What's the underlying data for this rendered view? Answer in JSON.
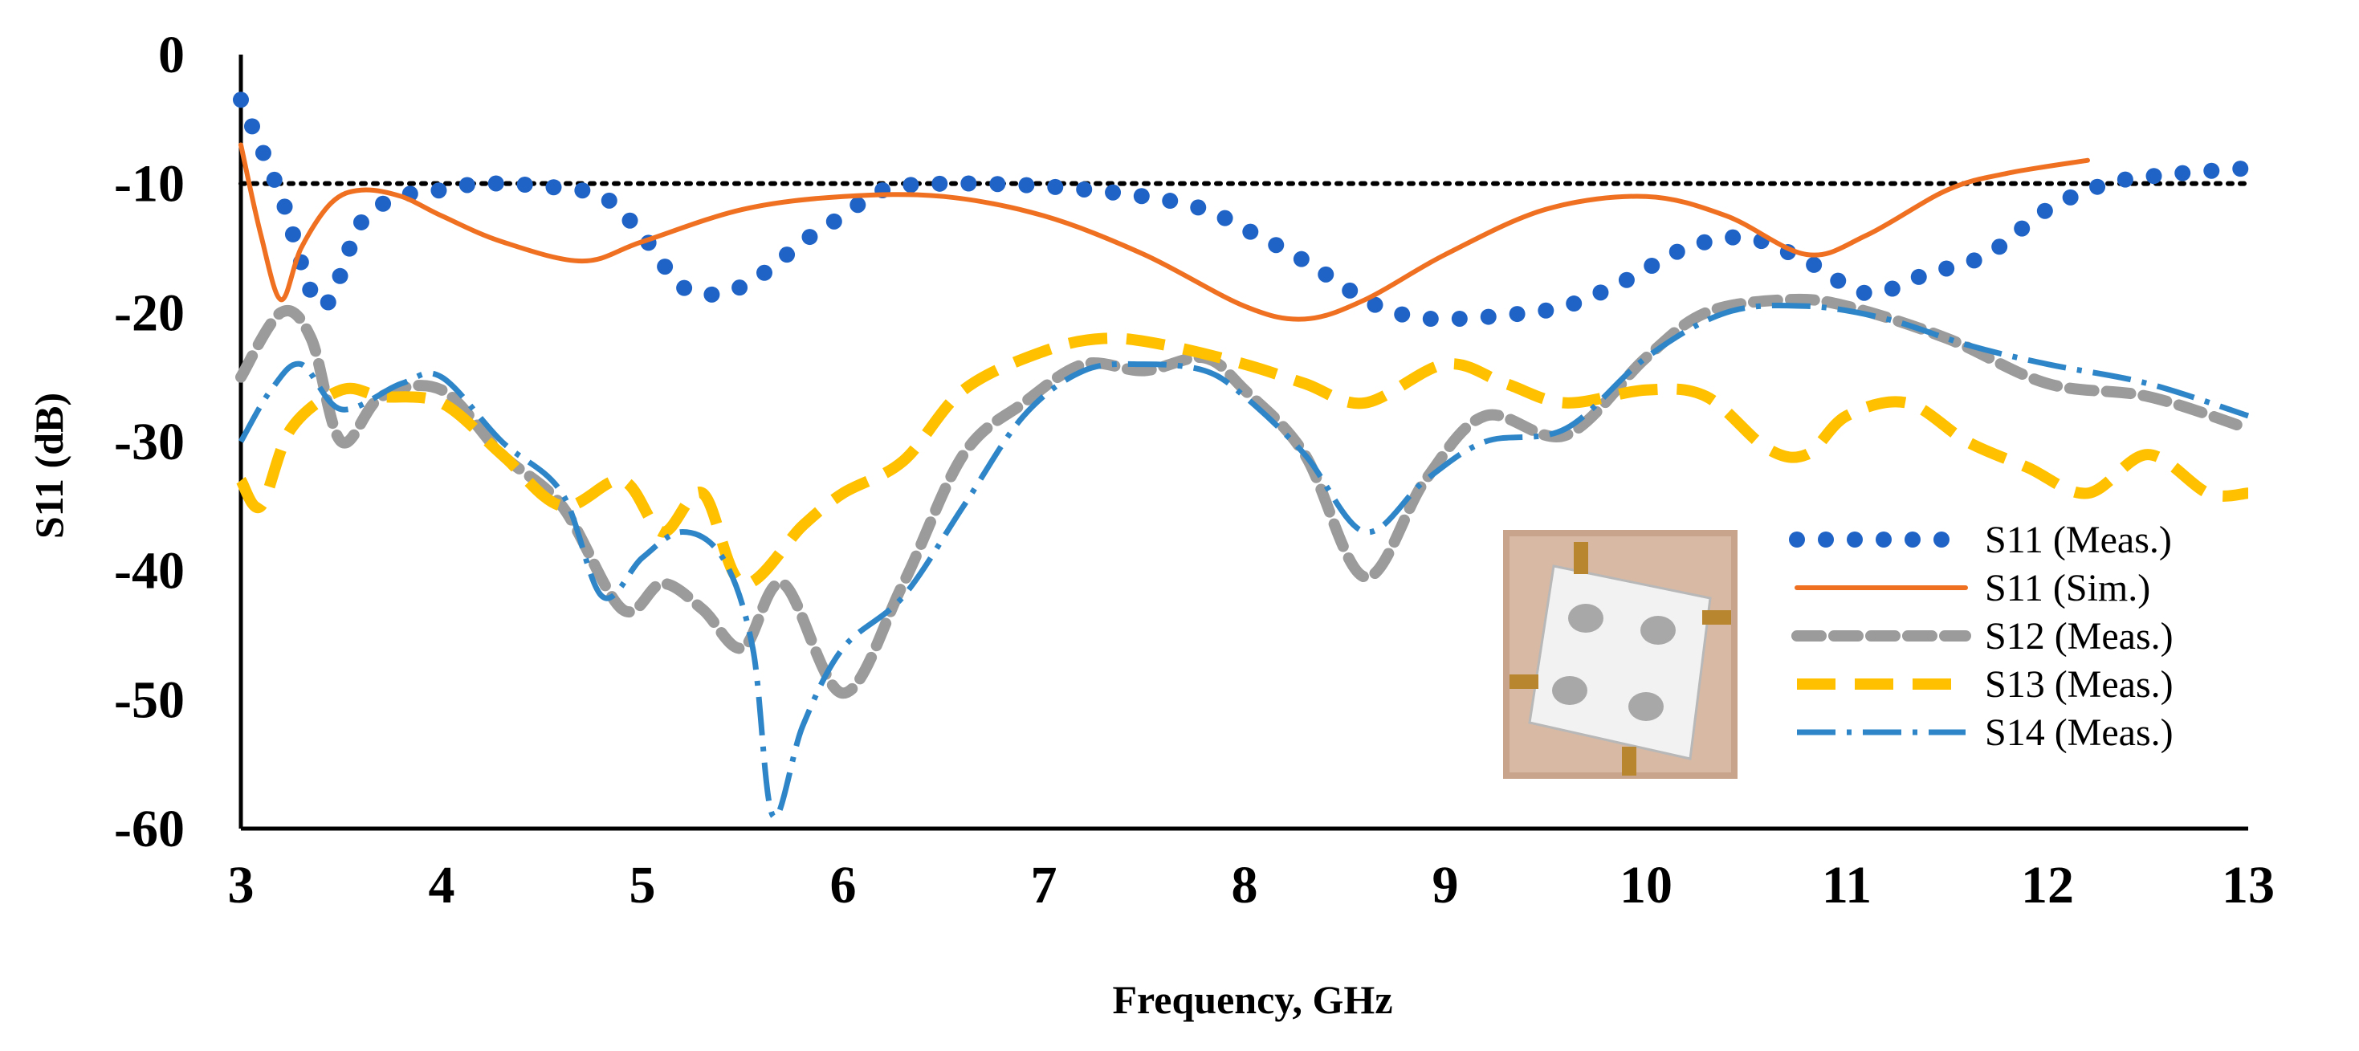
{
  "chart_data": {
    "type": "line",
    "xlabel": "Frequency, GHz",
    "ylabel": "S11 (dB)",
    "xlim": [
      3,
      13
    ],
    "ylim": [
      -60,
      0
    ],
    "x_ticks": [
      3,
      4,
      5,
      6,
      7,
      8,
      9,
      10,
      11,
      12,
      13
    ],
    "y_ticks": [
      0,
      -10,
      -20,
      -30,
      -40,
      -50,
      -60
    ],
    "grid": false,
    "legend_position": "bottom-right",
    "reference_line": {
      "y": -10,
      "style": "dotted",
      "color": "#000000"
    },
    "inset": "photo of fabricated antenna",
    "series": [
      {
        "name": "S11 (Meas.)",
        "color": "#1f63c6",
        "style": "dotted-round",
        "x": [
          3.0,
          3.2,
          3.4,
          3.6,
          3.8,
          4.0,
          4.2,
          4.5,
          4.8,
          5.0,
          5.2,
          5.4,
          5.6,
          5.8,
          6.0,
          6.2,
          6.5,
          7.0,
          7.5,
          7.8,
          8.0,
          8.3,
          8.6,
          8.8,
          9.0,
          9.3,
          9.6,
          9.9,
          10.2,
          10.5,
          10.8,
          11.1,
          11.4,
          11.7,
          12.0,
          12.3,
          12.6,
          13.0
        ],
        "y": [
          -3.5,
          -11,
          -19.5,
          -13,
          -11,
          -10.5,
          -10,
          -10.2,
          -11,
          -14,
          -18,
          -18.5,
          -17,
          -14.5,
          -12.5,
          -10.5,
          -10,
          -10.2,
          -11,
          -12,
          -13.5,
          -16,
          -19,
          -20.2,
          -20.5,
          -20.2,
          -19.5,
          -17.5,
          -15,
          -14.2,
          -16,
          -18.5,
          -17,
          -15.5,
          -12,
          -10,
          -9.3,
          -8.8
        ]
      },
      {
        "name": "S11 (Sim.)",
        "color": "#f07021",
        "style": "solid",
        "x": [
          3.0,
          3.1,
          3.2,
          3.3,
          3.45,
          3.6,
          3.8,
          4.0,
          4.3,
          4.7,
          5.0,
          5.5,
          6.0,
          6.5,
          7.0,
          7.5,
          8.0,
          8.3,
          8.6,
          9.0,
          9.5,
          10.0,
          10.4,
          10.8,
          11.1,
          11.5,
          11.8,
          12.2
        ],
        "y": [
          -7,
          -14,
          -19,
          -15,
          -11.5,
          -10.5,
          -11,
          -12.5,
          -14.5,
          -16,
          -14.5,
          -12,
          -11,
          -11,
          -12.5,
          -15.5,
          -19.5,
          -20.5,
          -19,
          -15.5,
          -12,
          -11,
          -12.5,
          -15.5,
          -14,
          -10.5,
          -9.2,
          -8.2
        ]
      },
      {
        "name": "S12 (Meas.)",
        "color": "#9b9b9b",
        "style": "dashed",
        "x": [
          3.0,
          3.2,
          3.35,
          3.5,
          3.7,
          4.0,
          4.3,
          4.6,
          4.9,
          5.1,
          5.3,
          5.5,
          5.7,
          6.0,
          6.3,
          6.6,
          6.9,
          7.2,
          7.5,
          7.8,
          8.0,
          8.3,
          8.6,
          8.9,
          9.2,
          9.6,
          10.0,
          10.3,
          10.7,
          11.0,
          11.5,
          12.0,
          12.5,
          13.0
        ],
        "y": [
          -25,
          -20,
          -22,
          -30,
          -26.5,
          -26,
          -31,
          -35,
          -43,
          -41,
          -43,
          -46,
          -41,
          -49.5,
          -41,
          -31,
          -27,
          -24,
          -24.5,
          -23.5,
          -26,
          -31,
          -40.5,
          -33,
          -28,
          -29.5,
          -23.5,
          -20,
          -19,
          -19.5,
          -22,
          -25.5,
          -26.5,
          -29
        ]
      },
      {
        "name": "S13 (Meas.)",
        "color": "#ffc000",
        "style": "long-dashed",
        "x": [
          3.0,
          3.1,
          3.25,
          3.5,
          3.7,
          4.0,
          4.3,
          4.6,
          4.9,
          5.1,
          5.3,
          5.5,
          5.8,
          6.0,
          6.3,
          6.6,
          7.0,
          7.3,
          7.6,
          8.0,
          8.3,
          8.6,
          9.0,
          9.3,
          9.6,
          10.0,
          10.3,
          10.6,
          10.8,
          11.0,
          11.3,
          11.6,
          11.9,
          12.2,
          12.5,
          12.8,
          13.0
        ],
        "y": [
          -33,
          -35,
          -29,
          -26,
          -26.5,
          -27,
          -31,
          -35,
          -33,
          -37,
          -34,
          -41,
          -36.5,
          -34,
          -31.5,
          -26,
          -23,
          -22,
          -22.5,
          -24,
          -25.5,
          -27,
          -24,
          -25.5,
          -27,
          -26,
          -26.5,
          -30.5,
          -31,
          -28,
          -27,
          -30,
          -32,
          -34,
          -31,
          -34,
          -34
        ]
      },
      {
        "name": "S14 (Meas.)",
        "color": "#2e86c8",
        "style": "dash-dot",
        "x": [
          3.0,
          3.15,
          3.3,
          3.5,
          3.8,
          4.0,
          4.3,
          4.6,
          4.8,
          5.0,
          5.2,
          5.4,
          5.55,
          5.65,
          5.8,
          6.0,
          6.3,
          6.6,
          6.9,
          7.2,
          7.5,
          7.8,
          8.0,
          8.3,
          8.6,
          8.9,
          9.2,
          9.6,
          10.0,
          10.4,
          10.8,
          11.2,
          11.6,
          12.0,
          12.5,
          13.0
        ],
        "y": [
          -30,
          -26,
          -24,
          -27.5,
          -25.5,
          -25,
          -30,
          -34,
          -42,
          -39,
          -37,
          -39,
          -46,
          -59,
          -52,
          -46,
          -42,
          -35,
          -28,
          -24.5,
          -24,
          -24.5,
          -26.5,
          -31,
          -37,
          -33,
          -30,
          -29,
          -23.5,
          -20,
          -19.5,
          -20.5,
          -22.5,
          -24,
          -25.5,
          -28
        ]
      }
    ]
  }
}
